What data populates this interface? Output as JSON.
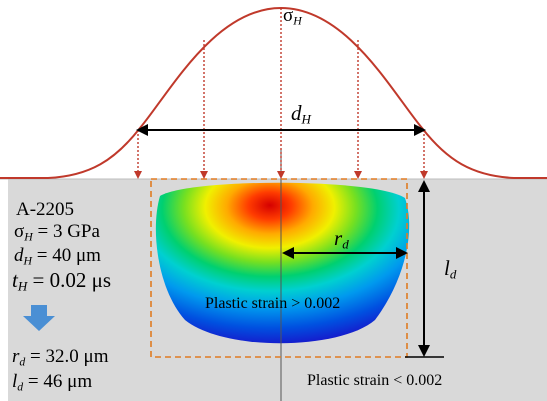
{
  "title_sigma": "σH",
  "params": {
    "material": "A-2205",
    "sigma_H": {
      "sym": "σ",
      "sub": "H",
      "value": " = 3 GPa"
    },
    "d_H": {
      "sym": "d",
      "sub": "H",
      "value": " = 40 μm"
    },
    "t_H": {
      "sym": "t",
      "sub": "H",
      "value": " = 0.02 μs"
    }
  },
  "results": {
    "r_d": {
      "sym": "r",
      "sub": "d",
      "value": " = 32.0 μm"
    },
    "l_d": {
      "sym": "l",
      "sub": "d",
      "value": " = 46 μm"
    }
  },
  "labels": {
    "dH": {
      "sym": "d",
      "sub": "H"
    },
    "rd": {
      "sym": "r",
      "sub": "d"
    },
    "ld": {
      "sym": "l",
      "sub": "d"
    },
    "plastic_gt": "Plastic strain > 0.002",
    "plastic_lt": "Plastic strain < 0.002"
  },
  "colors": {
    "curve": "#c0392b",
    "dashed_arrow": "#c0392b",
    "box": "#e07b22",
    "material_bg": "#d9d9d9",
    "result_arrow": "#4a8fd4"
  }
}
